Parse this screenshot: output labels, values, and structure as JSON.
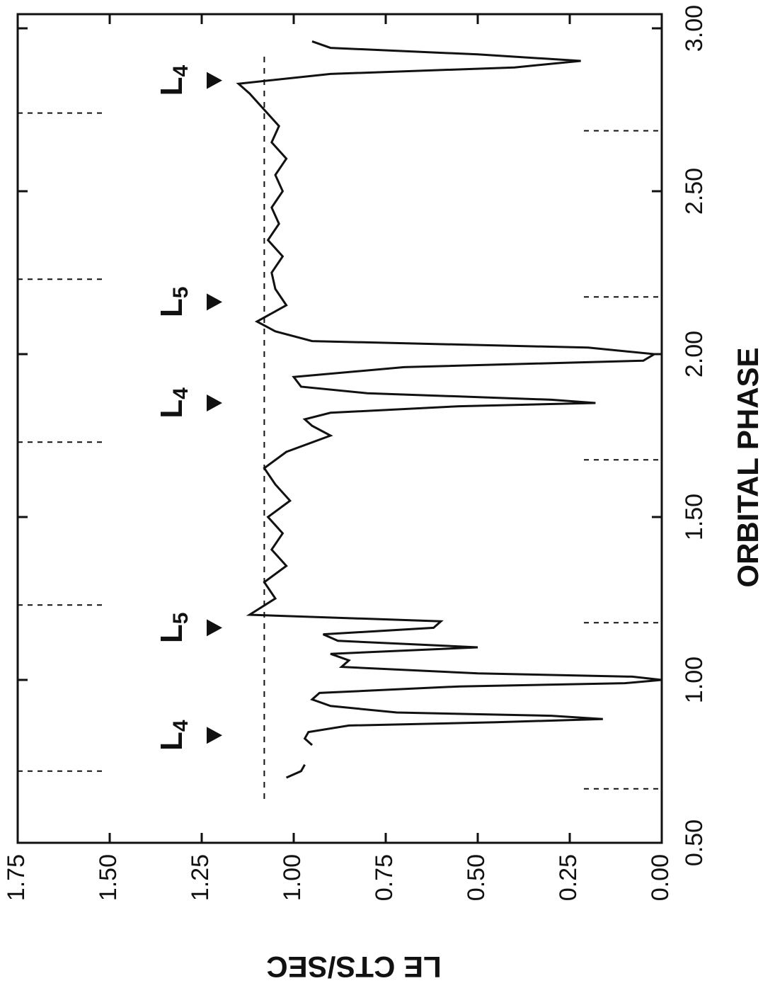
{
  "chart_data": {
    "type": "line",
    "xlabel": "ORBITAL PHASE",
    "ylabel": "LE CTS/SEC",
    "xlim": [
      0.5,
      3.0
    ],
    "xticks": [
      {
        "value": 0.5,
        "label": "0.50"
      },
      {
        "value": 1.0,
        "label": "1.00"
      },
      {
        "value": 1.5,
        "label": "1.50"
      },
      {
        "value": 2.0,
        "label": "2.00"
      },
      {
        "value": 2.5,
        "label": "2.50"
      },
      {
        "value": 3.0,
        "label": "3.00"
      }
    ],
    "ylim": [
      0,
      1.75
    ],
    "yticks": [
      {
        "value": 0,
        "label": "0.00"
      },
      {
        "value": 0.25,
        "label": "0.25"
      },
      {
        "value": 0.5,
        "label": "0.50"
      },
      {
        "value": 0.75,
        "label": "0.75"
      },
      {
        "value": 1.0,
        "label": "1.00"
      },
      {
        "value": 1.25,
        "label": "1.25"
      },
      {
        "value": 1.5,
        "label": "1.50"
      },
      {
        "value": 1.75,
        "label": "1.75"
      }
    ],
    "grid": false,
    "color": "#111111",
    "x": [
      0.7,
      0.72,
      0.74,
      0.76,
      0.8,
      0.82,
      0.84,
      0.86,
      0.87,
      0.88,
      0.89,
      0.9,
      0.92,
      0.94,
      0.96,
      0.98,
      0.99,
      1.0,
      1.01,
      1.02,
      1.04,
      1.06,
      1.08,
      1.1,
      1.12,
      1.14,
      1.16,
      1.18,
      1.2,
      1.25,
      1.3,
      1.35,
      1.4,
      1.45,
      1.5,
      1.55,
      1.6,
      1.65,
      1.7,
      1.75,
      1.78,
      1.8,
      1.82,
      1.84,
      1.85,
      1.86,
      1.88,
      1.9,
      1.93,
      1.96,
      1.98,
      2.0,
      2.02,
      2.04,
      2.07,
      2.1,
      2.15,
      2.2,
      2.25,
      2.3,
      2.35,
      2.4,
      2.45,
      2.5,
      2.55,
      2.6,
      2.65,
      2.7,
      2.75,
      2.8,
      2.83,
      2.86,
      2.88,
      2.9,
      2.92,
      2.94,
      2.96
    ],
    "values": [
      1.02,
      0.98,
      0.97,
      null,
      0.95,
      0.97,
      0.96,
      0.85,
      0.45,
      0.16,
      0.3,
      0.72,
      0.9,
      0.95,
      0.93,
      0.55,
      0.1,
      0.0,
      0.08,
      0.5,
      0.87,
      0.85,
      0.9,
      0.5,
      0.88,
      0.92,
      0.62,
      0.6,
      1.12,
      1.05,
      1.08,
      1.02,
      1.06,
      1.03,
      1.07,
      1.01,
      1.05,
      1.08,
      1.02,
      0.9,
      0.95,
      0.97,
      0.9,
      0.55,
      0.18,
      0.3,
      0.8,
      0.98,
      1.0,
      0.7,
      0.05,
      0.02,
      0.2,
      0.95,
      1.05,
      1.1,
      1.02,
      1.05,
      1.06,
      1.03,
      1.07,
      1.04,
      1.06,
      1.03,
      1.05,
      1.02,
      1.06,
      1.04,
      1.08,
      1.12,
      1.15,
      0.9,
      0.4,
      0.22,
      0.5,
      0.9,
      0.95
    ],
    "reference_level": 1.08,
    "dashed_phases": [
      0.72,
      1.23,
      1.73,
      2.23,
      2.74
    ],
    "markers": [
      {
        "label": "L",
        "sub": "4",
        "phase": 0.83
      },
      {
        "label": "L",
        "sub": "5",
        "phase": 1.16
      },
      {
        "label": "L",
        "sub": "4",
        "phase": 1.85
      },
      {
        "label": "L",
        "sub": "5",
        "phase": 2.16
      },
      {
        "label": "L",
        "sub": "4",
        "phase": 2.84
      }
    ]
  }
}
